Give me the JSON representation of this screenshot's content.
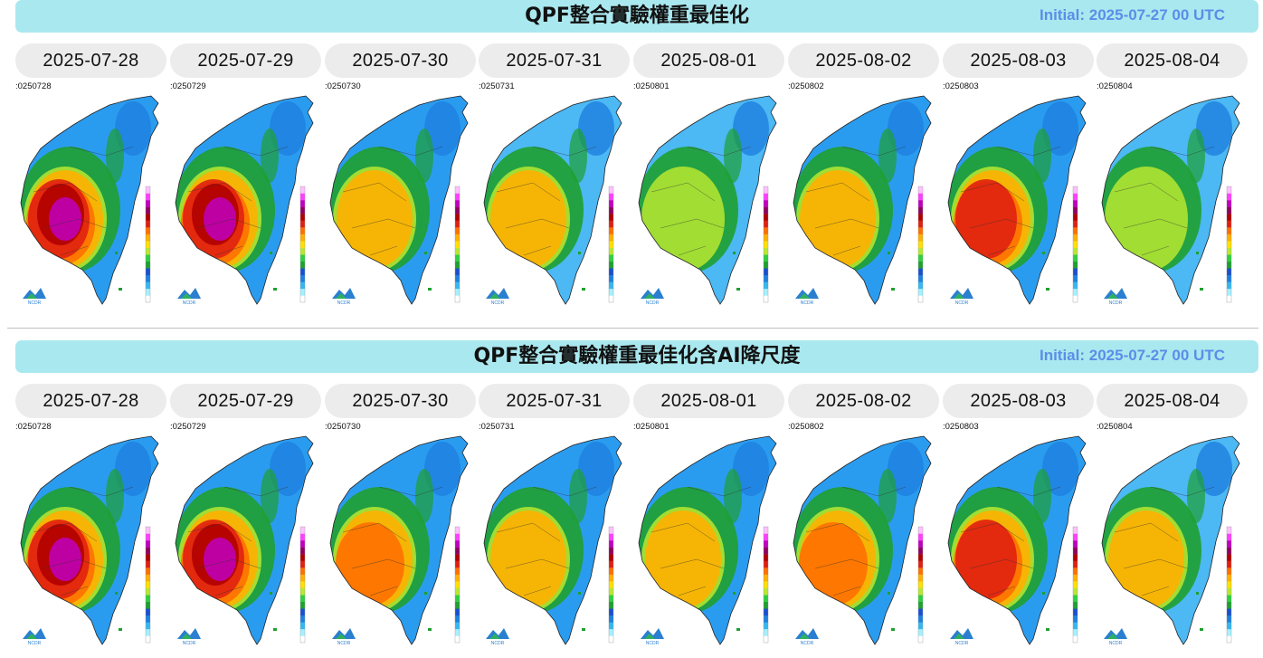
{
  "sections": [
    {
      "title": "QPF整合實驗權重最佳化",
      "initial": "Initial: 2025-07-27 00 UTC",
      "panels": [
        {
          "date": "2025-07-28",
          "stamp": ":0250728",
          "intensity": 0.9
        },
        {
          "date": "2025-07-29",
          "stamp": ":0250729",
          "intensity": 0.95
        },
        {
          "date": "2025-07-30",
          "stamp": ":0250730",
          "intensity": 0.55
        },
        {
          "date": "2025-07-31",
          "stamp": ":0250731",
          "intensity": 0.45
        },
        {
          "date": "2025-08-01",
          "stamp": ":0250801",
          "intensity": 0.4
        },
        {
          "date": "2025-08-02",
          "stamp": ":0250802",
          "intensity": 0.55
        },
        {
          "date": "2025-08-03",
          "stamp": ":0250803",
          "intensity": 0.7
        },
        {
          "date": "2025-08-04",
          "stamp": ":0250804",
          "intensity": 0.35
        }
      ]
    },
    {
      "title": "QPF整合實驗權重最佳化含AI降尺度",
      "initial": "Initial: 2025-07-27 00 UTC",
      "panels": [
        {
          "date": "2025-07-28",
          "stamp": ":0250728",
          "intensity": 0.92
        },
        {
          "date": "2025-07-29",
          "stamp": ":0250729",
          "intensity": 0.95
        },
        {
          "date": "2025-07-30",
          "stamp": ":0250730",
          "intensity": 0.65
        },
        {
          "date": "2025-07-31",
          "stamp": ":0250731",
          "intensity": 0.55
        },
        {
          "date": "2025-08-01",
          "stamp": ":0250801",
          "intensity": 0.55
        },
        {
          "date": "2025-08-02",
          "stamp": ":0250802",
          "intensity": 0.65
        },
        {
          "date": "2025-08-03",
          "stamp": ":0250803",
          "intensity": 0.7
        },
        {
          "date": "2025-08-04",
          "stamp": ":0250804",
          "intensity": 0.45
        }
      ]
    }
  ],
  "colorbar": [
    "#ffffff",
    "#a5f0ff",
    "#35b8f0",
    "#1e80e0",
    "#1a4fd0",
    "#1fa030",
    "#2fd040",
    "#b8e830",
    "#ffe000",
    "#ffb000",
    "#ff7000",
    "#e02010",
    "#b00000",
    "#900060",
    "#c000c0",
    "#ff40ff",
    "#ffc0ff"
  ],
  "logo_text": "NCDR"
}
